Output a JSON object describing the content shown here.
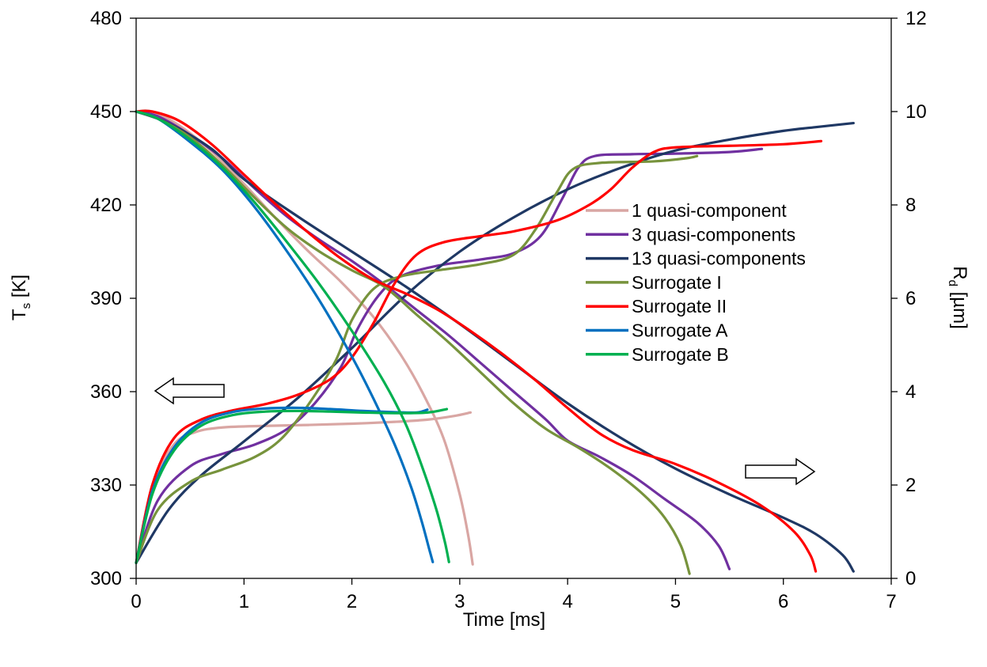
{
  "chart_data": {
    "type": "line",
    "title": "",
    "xlabel": "Time [ms]",
    "ylabel_left": "T",
    "ylabel_left_sub": "s",
    "ylabel_left_unit": " [K]",
    "ylabel_right": "R",
    "ylabel_right_sub": "d",
    "ylabel_right_unit": " [µm]",
    "xlim": [
      0,
      7
    ],
    "ylim_left": [
      300,
      480
    ],
    "ylim_right": [
      0,
      12
    ],
    "x_ticks": [
      "0",
      "1",
      "2",
      "3",
      "4",
      "5",
      "6",
      "7"
    ],
    "y_left_ticks": [
      "300",
      "330",
      "360",
      "390",
      "420",
      "450",
      "480"
    ],
    "y_right_ticks": [
      "0",
      "2",
      "4",
      "6",
      "8",
      "10",
      "12"
    ],
    "grid": false,
    "legend_position": "center-right",
    "series": [
      {
        "name": "1 quasi-component",
        "color": "#d9a6a3",
        "temperature_K": [
          [
            0.0,
            305
          ],
          [
            0.15,
            330
          ],
          [
            0.35,
            343
          ],
          [
            0.55,
            347
          ],
          [
            0.8,
            348.5
          ],
          [
            1.2,
            349
          ],
          [
            1.6,
            349.3
          ],
          [
            2.0,
            349.7
          ],
          [
            2.4,
            350.3
          ],
          [
            2.7,
            351.0
          ],
          [
            2.95,
            352.2
          ],
          [
            3.1,
            353.3
          ]
        ],
        "radius_um": [
          [
            0.0,
            10.0
          ],
          [
            0.15,
            10.0
          ],
          [
            0.4,
            9.7
          ],
          [
            0.7,
            9.15
          ],
          [
            1.0,
            8.45
          ],
          [
            1.3,
            7.7
          ],
          [
            1.6,
            7.0
          ],
          [
            1.9,
            6.35
          ],
          [
            2.2,
            5.6
          ],
          [
            2.45,
            4.8
          ],
          [
            2.65,
            4.0
          ],
          [
            2.85,
            3.0
          ],
          [
            3.0,
            1.8
          ],
          [
            3.08,
            0.9
          ],
          [
            3.12,
            0.3
          ]
        ]
      },
      {
        "name": "3 quasi-components",
        "color": "#7030a0",
        "temperature_K": [
          [
            0.0,
            305
          ],
          [
            0.2,
            325
          ],
          [
            0.5,
            336
          ],
          [
            0.8,
            340
          ],
          [
            1.1,
            343
          ],
          [
            1.4,
            348
          ],
          [
            1.65,
            356
          ],
          [
            1.9,
            368
          ],
          [
            2.05,
            380
          ],
          [
            2.25,
            391
          ],
          [
            2.45,
            397
          ],
          [
            2.8,
            400.5
          ],
          [
            3.2,
            402.5
          ],
          [
            3.5,
            404.5
          ],
          [
            3.75,
            410
          ],
          [
            3.95,
            422
          ],
          [
            4.1,
            432
          ],
          [
            4.25,
            435.7
          ],
          [
            4.6,
            436.3
          ],
          [
            5.0,
            436.5
          ],
          [
            5.5,
            437
          ],
          [
            5.8,
            438
          ]
        ],
        "radius_um": [
          [
            0.0,
            10.0
          ],
          [
            0.2,
            9.9
          ],
          [
            0.5,
            9.5
          ],
          [
            0.8,
            9.0
          ],
          [
            1.1,
            8.35
          ],
          [
            1.4,
            7.75
          ],
          [
            1.7,
            7.25
          ],
          [
            2.0,
            6.8
          ],
          [
            2.3,
            6.3
          ],
          [
            2.6,
            5.75
          ],
          [
            2.9,
            5.2
          ],
          [
            3.2,
            4.6
          ],
          [
            3.5,
            4.0
          ],
          [
            3.8,
            3.4
          ],
          [
            4.0,
            2.95
          ],
          [
            4.3,
            2.6
          ],
          [
            4.6,
            2.2
          ],
          [
            4.9,
            1.7
          ],
          [
            5.2,
            1.2
          ],
          [
            5.4,
            0.7
          ],
          [
            5.5,
            0.2
          ]
        ]
      },
      {
        "name": "13 quasi-components",
        "color": "#1f3864",
        "temperature_K": [
          [
            0.0,
            305
          ],
          [
            0.3,
            322
          ],
          [
            0.6,
            333
          ],
          [
            1.0,
            344
          ],
          [
            1.5,
            358
          ],
          [
            2.0,
            374
          ],
          [
            2.5,
            391
          ],
          [
            3.0,
            405
          ],
          [
            3.5,
            416
          ],
          [
            4.0,
            425
          ],
          [
            4.5,
            432
          ],
          [
            5.0,
            437.5
          ],
          [
            5.5,
            441
          ],
          [
            6.0,
            443.8
          ],
          [
            6.3,
            445
          ],
          [
            6.65,
            446.3
          ]
        ],
        "radius_um": [
          [
            0.0,
            10.0
          ],
          [
            0.3,
            9.75
          ],
          [
            0.7,
            9.2
          ],
          [
            1.0,
            8.55
          ],
          [
            1.5,
            7.75
          ],
          [
            2.0,
            7.0
          ],
          [
            2.5,
            6.25
          ],
          [
            3.0,
            5.45
          ],
          [
            3.5,
            4.6
          ],
          [
            4.0,
            3.75
          ],
          [
            4.5,
            3.0
          ],
          [
            5.0,
            2.35
          ],
          [
            5.5,
            1.8
          ],
          [
            6.0,
            1.3
          ],
          [
            6.3,
            0.95
          ],
          [
            6.55,
            0.5
          ],
          [
            6.65,
            0.15
          ]
        ]
      },
      {
        "name": "Surrogate I",
        "color": "#77933c",
        "temperature_K": [
          [
            0.0,
            305
          ],
          [
            0.2,
            322
          ],
          [
            0.5,
            331
          ],
          [
            0.8,
            335
          ],
          [
            1.1,
            339
          ],
          [
            1.35,
            345
          ],
          [
            1.6,
            356
          ],
          [
            1.85,
            370
          ],
          [
            2.0,
            383
          ],
          [
            2.2,
            393
          ],
          [
            2.45,
            397
          ],
          [
            2.8,
            399
          ],
          [
            3.2,
            401
          ],
          [
            3.5,
            404
          ],
          [
            3.7,
            412
          ],
          [
            3.9,
            424
          ],
          [
            4.05,
            431.5
          ],
          [
            4.3,
            433.5
          ],
          [
            4.8,
            434
          ],
          [
            5.1,
            435
          ],
          [
            5.2,
            435.7
          ]
        ],
        "radius_um": [
          [
            0.0,
            10.0
          ],
          [
            0.2,
            9.85
          ],
          [
            0.5,
            9.45
          ],
          [
            0.8,
            8.85
          ],
          [
            1.1,
            8.15
          ],
          [
            1.4,
            7.5
          ],
          [
            1.7,
            7.0
          ],
          [
            2.0,
            6.6
          ],
          [
            2.3,
            6.25
          ],
          [
            2.6,
            5.65
          ],
          [
            2.9,
            5.05
          ],
          [
            3.2,
            4.4
          ],
          [
            3.5,
            3.75
          ],
          [
            3.8,
            3.2
          ],
          [
            4.1,
            2.8
          ],
          [
            4.4,
            2.35
          ],
          [
            4.7,
            1.8
          ],
          [
            4.9,
            1.3
          ],
          [
            5.05,
            0.7
          ],
          [
            5.13,
            0.1
          ]
        ]
      },
      {
        "name": "Surrogate II",
        "color": "#ff0000",
        "temperature_K": [
          [
            0.0,
            305
          ],
          [
            0.15,
            330
          ],
          [
            0.35,
            345
          ],
          [
            0.6,
            351
          ],
          [
            0.9,
            354
          ],
          [
            1.2,
            356
          ],
          [
            1.5,
            359
          ],
          [
            1.8,
            364
          ],
          [
            2.0,
            371
          ],
          [
            2.2,
            382
          ],
          [
            2.4,
            395
          ],
          [
            2.6,
            404
          ],
          [
            2.85,
            408
          ],
          [
            3.2,
            410
          ],
          [
            3.5,
            411.5
          ],
          [
            3.9,
            415
          ],
          [
            4.2,
            420
          ],
          [
            4.4,
            425
          ],
          [
            4.6,
            432
          ],
          [
            4.8,
            437
          ],
          [
            5.0,
            438.5
          ],
          [
            5.5,
            439
          ],
          [
            6.0,
            439.5
          ],
          [
            6.35,
            440.5
          ]
        ],
        "radius_um": [
          [
            0.0,
            10.0
          ],
          [
            0.15,
            10.0
          ],
          [
            0.4,
            9.8
          ],
          [
            0.7,
            9.3
          ],
          [
            1.0,
            8.65
          ],
          [
            1.3,
            8.0
          ],
          [
            1.6,
            7.4
          ],
          [
            1.9,
            6.85
          ],
          [
            2.2,
            6.4
          ],
          [
            2.5,
            6.1
          ],
          [
            2.8,
            5.75
          ],
          [
            3.1,
            5.3
          ],
          [
            3.4,
            4.8
          ],
          [
            3.7,
            4.25
          ],
          [
            4.0,
            3.65
          ],
          [
            4.3,
            3.1
          ],
          [
            4.6,
            2.75
          ],
          [
            5.0,
            2.45
          ],
          [
            5.4,
            2.05
          ],
          [
            5.8,
            1.55
          ],
          [
            6.1,
            1.0
          ],
          [
            6.25,
            0.5
          ],
          [
            6.3,
            0.15
          ]
        ]
      },
      {
        "name": "Surrogate A",
        "color": "#0070c0",
        "temperature_K": [
          [
            0.0,
            305
          ],
          [
            0.15,
            328
          ],
          [
            0.35,
            342
          ],
          [
            0.6,
            350
          ],
          [
            0.9,
            353.5
          ],
          [
            1.2,
            354.6
          ],
          [
            1.5,
            354.8
          ],
          [
            1.8,
            354.4
          ],
          [
            2.1,
            353.8
          ],
          [
            2.4,
            353.4
          ],
          [
            2.6,
            353.3
          ],
          [
            2.7,
            354.2
          ]
        ],
        "radius_um": [
          [
            0.0,
            10.0
          ],
          [
            0.2,
            9.85
          ],
          [
            0.5,
            9.35
          ],
          [
            0.8,
            8.75
          ],
          [
            1.1,
            7.95
          ],
          [
            1.4,
            7.0
          ],
          [
            1.7,
            5.95
          ],
          [
            2.0,
            4.75
          ],
          [
            2.2,
            3.85
          ],
          [
            2.4,
            2.85
          ],
          [
            2.55,
            1.95
          ],
          [
            2.65,
            1.2
          ],
          [
            2.72,
            0.6
          ],
          [
            2.75,
            0.35
          ]
        ]
      },
      {
        "name": "Surrogate B",
        "color": "#00b050",
        "temperature_K": [
          [
            0.0,
            305
          ],
          [
            0.15,
            327
          ],
          [
            0.35,
            341
          ],
          [
            0.6,
            349
          ],
          [
            0.9,
            352.5
          ],
          [
            1.2,
            353.6
          ],
          [
            1.5,
            353.8
          ],
          [
            1.8,
            353.6
          ],
          [
            2.1,
            353.3
          ],
          [
            2.4,
            353.1
          ],
          [
            2.7,
            353.3
          ],
          [
            2.88,
            354.4
          ]
        ],
        "radius_um": [
          [
            0.0,
            10.0
          ],
          [
            0.2,
            9.85
          ],
          [
            0.5,
            9.4
          ],
          [
            0.8,
            8.8
          ],
          [
            1.1,
            8.05
          ],
          [
            1.4,
            7.2
          ],
          [
            1.7,
            6.3
          ],
          [
            2.0,
            5.3
          ],
          [
            2.3,
            4.2
          ],
          [
            2.5,
            3.3
          ],
          [
            2.65,
            2.4
          ],
          [
            2.78,
            1.5
          ],
          [
            2.86,
            0.8
          ],
          [
            2.9,
            0.35
          ]
        ]
      }
    ]
  }
}
